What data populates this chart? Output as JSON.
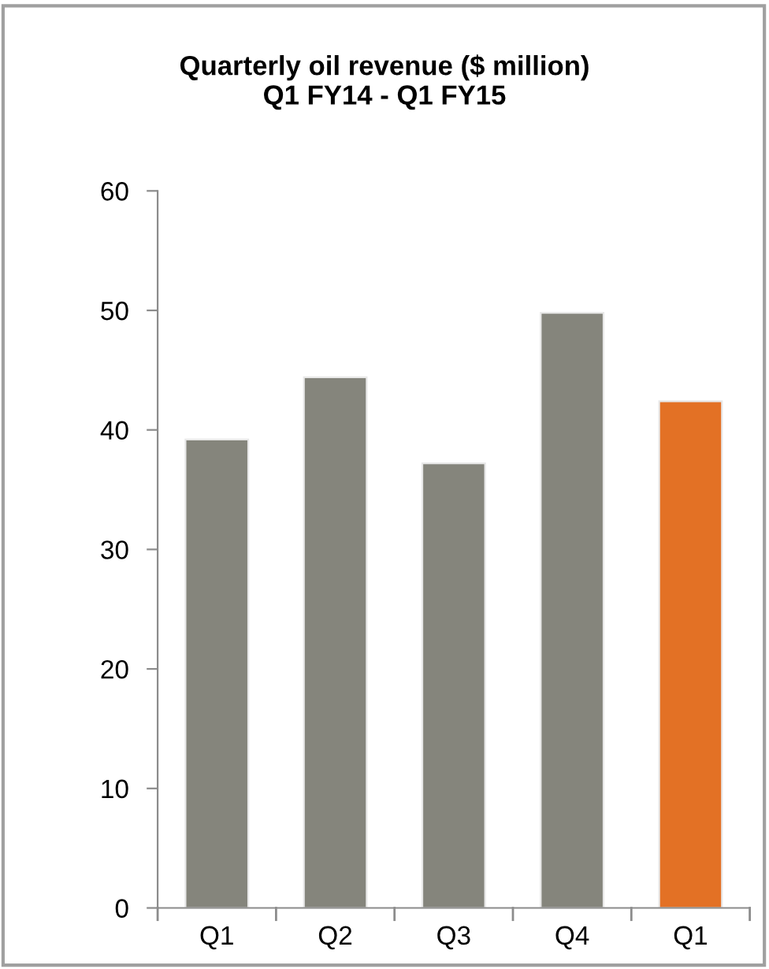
{
  "chart_data": {
    "type": "bar",
    "title": "Quarterly oil revenue ($ million)\nQ1 FY14 - Q1 FY15",
    "categories": [
      "Q1",
      "Q2",
      "Q3",
      "Q4",
      "Q1"
    ],
    "values": [
      39.2,
      44.4,
      37.2,
      49.8,
      42.4
    ],
    "colors": [
      "#85857c",
      "#85857c",
      "#85857c",
      "#85857c",
      "#e37125"
    ],
    "ylim": [
      0,
      60
    ],
    "yticks": [
      0,
      10,
      20,
      30,
      40,
      50,
      60
    ],
    "grid": false,
    "legend": false
  }
}
